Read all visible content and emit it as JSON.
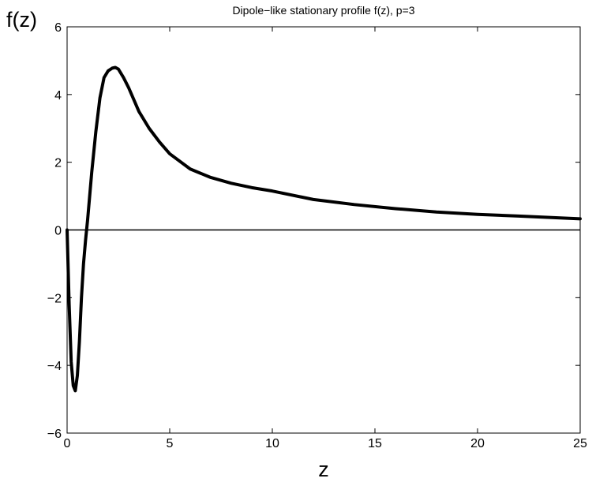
{
  "chart_data": {
    "type": "line",
    "title": "Dipole−like stationary profile f(z), p=3",
    "xlabel": "z",
    "ylabel": "f(z)",
    "xlim": [
      0,
      25
    ],
    "ylim": [
      -6,
      6
    ],
    "xticks": [
      0,
      5,
      10,
      15,
      20,
      25
    ],
    "yticks": [
      -6,
      -4,
      -2,
      0,
      2,
      4,
      6
    ],
    "xtick_labels": [
      "0",
      "5",
      "10",
      "15",
      "20",
      "25"
    ],
    "ytick_labels": [
      "−6",
      "−4",
      "−2",
      "0",
      "2",
      "4",
      "6"
    ],
    "grid": false,
    "reference_line_y": 0,
    "line_color": "#000000",
    "series": [
      {
        "x": [
          0,
          0.1,
          0.2,
          0.3,
          0.4,
          0.5,
          0.6,
          0.7,
          0.8,
          0.9,
          1.0,
          1.2,
          1.4,
          1.6,
          1.8,
          2.0,
          2.2,
          2.35,
          2.5,
          2.75,
          3.0,
          3.5,
          4.0,
          4.5,
          5.0,
          6.0,
          7.0,
          8.0,
          9.0,
          10.0,
          12.0,
          14.0,
          16.0,
          18.0,
          20.0,
          22.0,
          25.0
        ],
        "y": [
          0,
          -2.2,
          -3.9,
          -4.6,
          -4.75,
          -4.3,
          -3.3,
          -2.0,
          -1.0,
          -0.3,
          0.3,
          1.7,
          2.9,
          3.9,
          4.5,
          4.7,
          4.78,
          4.8,
          4.75,
          4.5,
          4.2,
          3.5,
          3.0,
          2.6,
          2.25,
          1.8,
          1.55,
          1.38,
          1.25,
          1.15,
          0.9,
          0.75,
          0.63,
          0.53,
          0.46,
          0.41,
          0.33
        ]
      }
    ]
  }
}
